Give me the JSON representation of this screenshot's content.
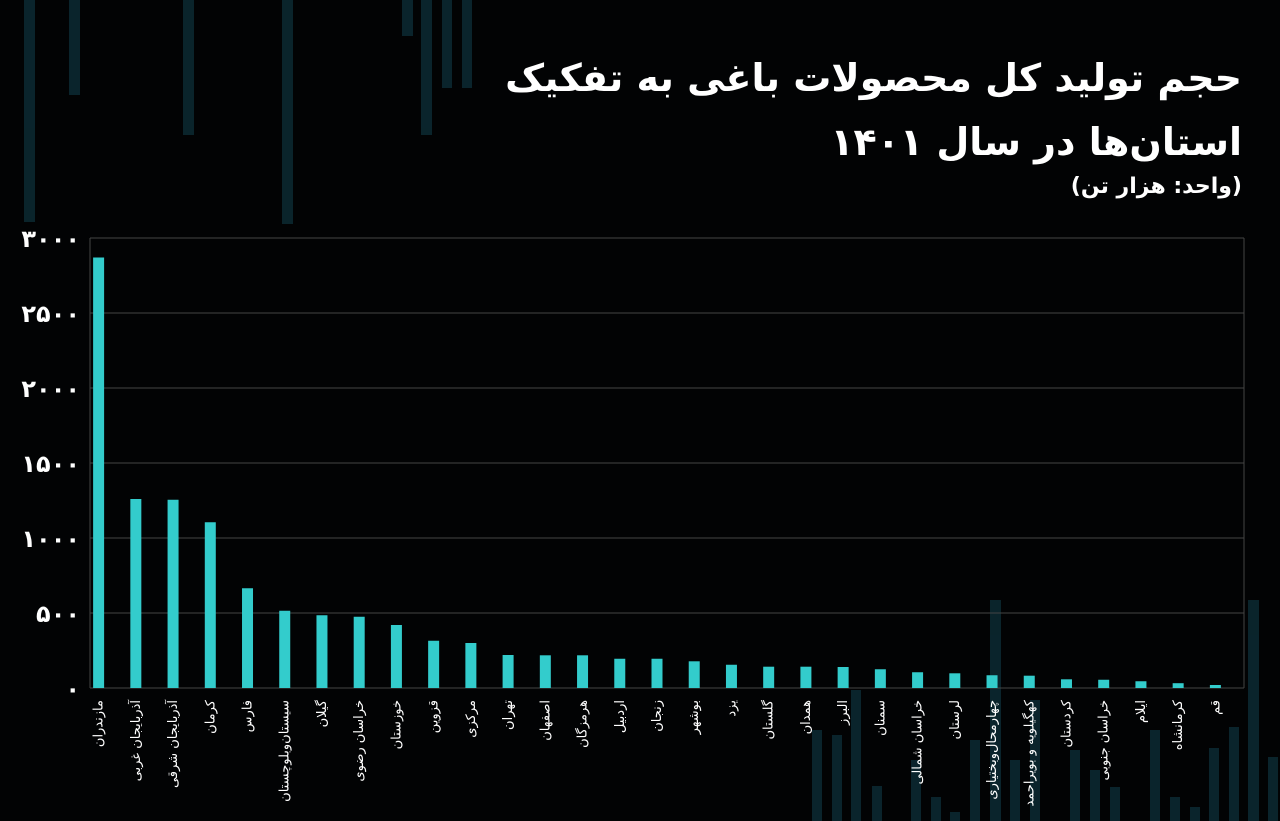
{
  "title": "حجم تولید کل محصولات باغی به تفکیک استان‌ها در سال ۱۴۰۱",
  "subtitle": "(واحد: هزار تن)",
  "colors": {
    "background": "#020304",
    "bar": "#33cccc",
    "grid": "#444444",
    "text": "#ffffff",
    "decoration": "#0c2a33"
  },
  "chart_data": {
    "type": "bar",
    "title": "حجم تولید کل محصولات باغی به تفکیک استان‌ها در سال ۱۴۰۱",
    "ylabel": "(واحد: هزار تن)",
    "xlabel": "",
    "ylim": [
      0,
      3000
    ],
    "yticks": [
      0,
      500,
      1000,
      1500,
      2000,
      2500,
      3000
    ],
    "ytick_labels": [
      "۰",
      "۵۰۰",
      "۱۰۰۰",
      "۱۵۰۰",
      "۲۰۰۰",
      "۲۵۰۰",
      "۳۰۰۰"
    ],
    "grid": true,
    "categories": [
      "مازندران",
      "آذربایجان غربی",
      "آذربایجان شرقی",
      "کرمان",
      "فارس",
      "سیستان‌وبلوچستان",
      "گیلان",
      "خراسان رضوی",
      "خوزستان",
      "قزوین",
      "مرکزی",
      "تهران",
      "اصفهان",
      "هرمزگان",
      "اردبیل",
      "زنجان",
      "بوشهر",
      "یزد",
      "گلستان",
      "همدان",
      "البرز",
      "سمنان",
      "خراسان شمالی",
      "لرستان",
      "چهارمحال‌وبختیاری",
      "کهگیلویه و بویراحمد",
      "کردستان",
      "خراسان جنوبی",
      "ایلام",
      "کرمانشاه",
      "قم"
    ],
    "values": [
      2870,
      1260,
      1255,
      1105,
      665,
      515,
      485,
      475,
      420,
      315,
      300,
      220,
      218,
      218,
      195,
      195,
      178,
      155,
      142,
      142,
      140,
      125,
      105,
      98,
      85,
      82,
      58,
      55,
      45,
      32,
      20
    ]
  }
}
